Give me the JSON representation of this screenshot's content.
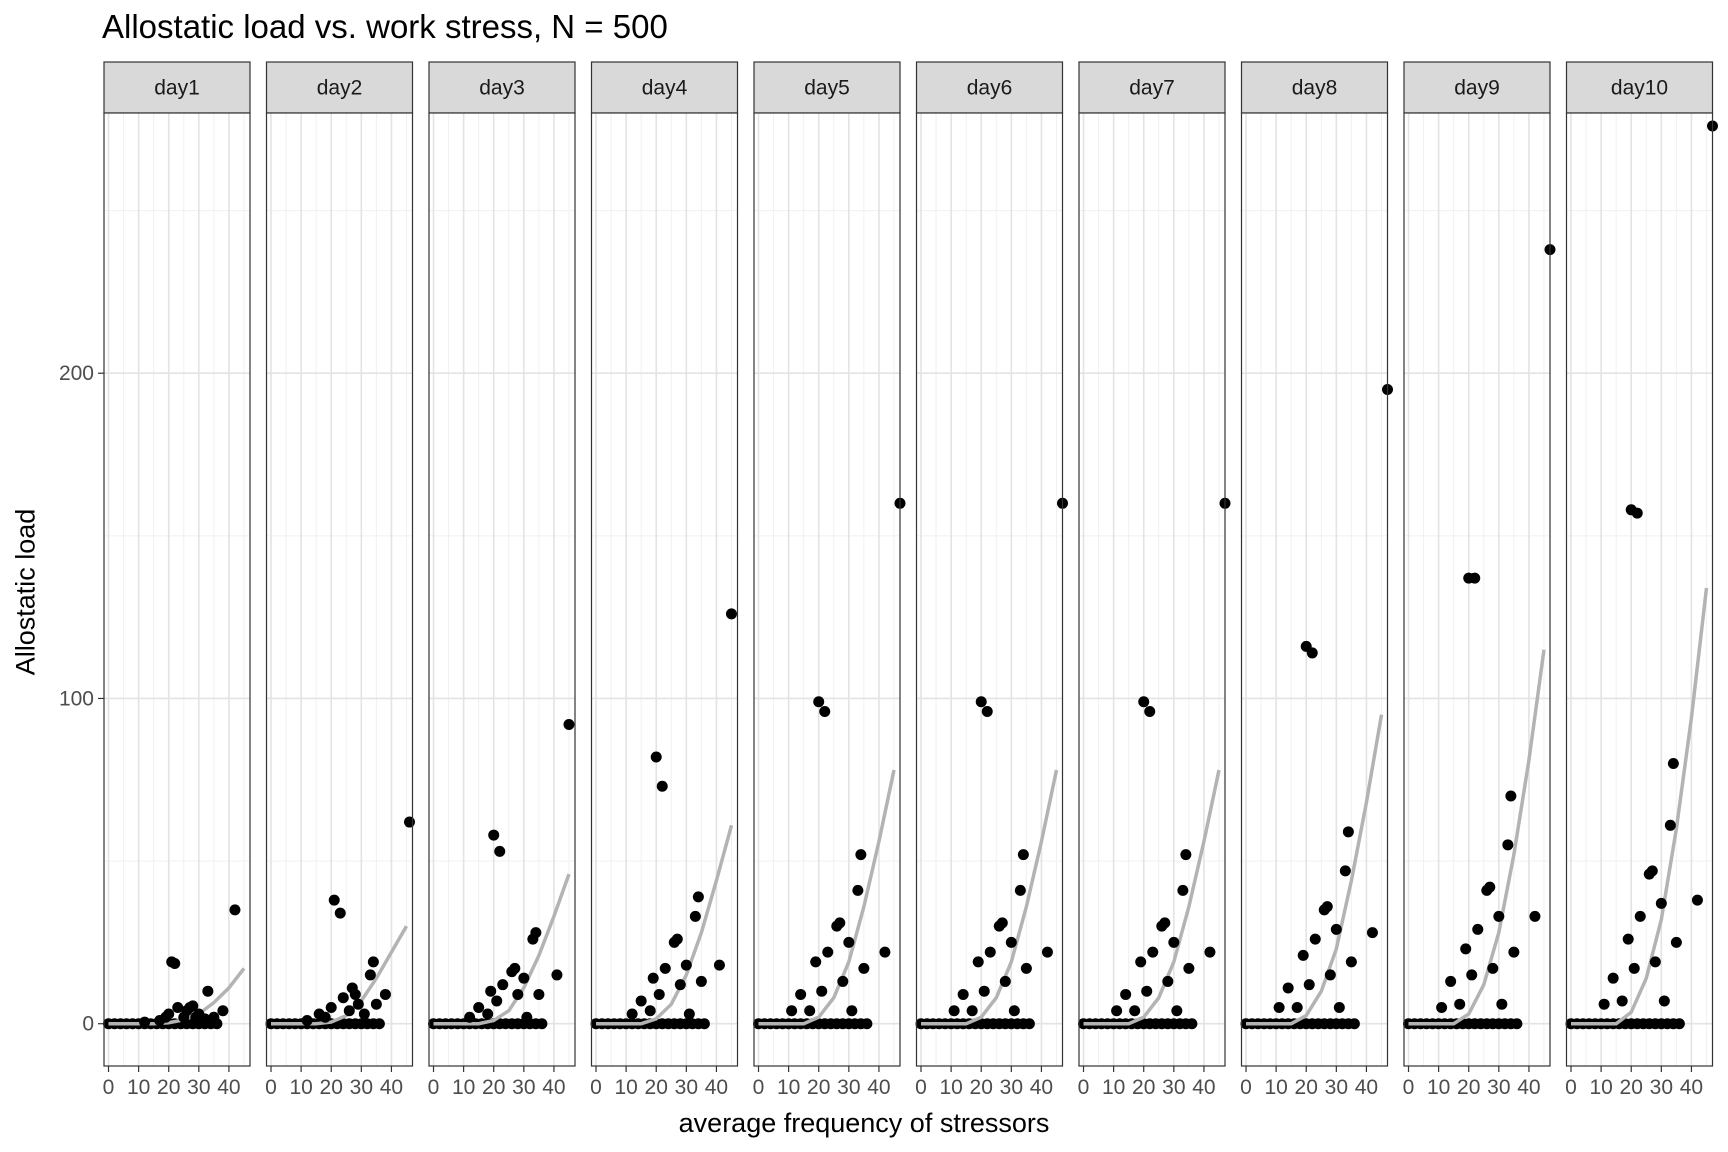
{
  "title": "Allostatic load vs. work stress, N = 500",
  "chart_data": {
    "type": "scatter",
    "title": "Allostatic load vs. work stress, N = 500",
    "xlabel": "average frequency of stressors",
    "ylabel": "Allostatic load",
    "xlim": [
      -1.5,
      47
    ],
    "ylim": [
      -13,
      280
    ],
    "xticks": [
      0,
      10,
      20,
      30,
      40
    ],
    "yticks": [
      0,
      100,
      200
    ],
    "grid": true,
    "facets": [
      {
        "label": "day1",
        "points": [
          [
            12,
            0.5
          ],
          [
            17,
            1
          ],
          [
            19,
            2
          ],
          [
            20,
            3
          ],
          [
            21,
            19
          ],
          [
            22,
            18.5
          ],
          [
            23,
            5
          ],
          [
            25,
            2
          ],
          [
            26,
            4
          ],
          [
            27,
            5
          ],
          [
            28,
            5.5
          ],
          [
            29,
            2
          ],
          [
            30,
            3
          ],
          [
            32,
            1.5
          ],
          [
            33,
            10
          ],
          [
            35,
            2
          ],
          [
            38,
            4
          ],
          [
            42,
            35
          ]
        ],
        "fit": [
          [
            0,
            0
          ],
          [
            15,
            0
          ],
          [
            20,
            0.3
          ],
          [
            25,
            1.2
          ],
          [
            30,
            3
          ],
          [
            35,
            6.5
          ],
          [
            40,
            11
          ],
          [
            45,
            17
          ]
        ]
      },
      {
        "label": "day2",
        "points": [
          [
            12,
            1
          ],
          [
            16,
            3
          ],
          [
            18,
            2
          ],
          [
            20,
            5
          ],
          [
            21,
            38
          ],
          [
            23,
            34
          ],
          [
            24,
            8
          ],
          [
            26,
            4
          ],
          [
            27,
            11
          ],
          [
            28,
            9
          ],
          [
            29,
            6
          ],
          [
            31,
            3
          ],
          [
            33,
            15
          ],
          [
            34,
            19
          ],
          [
            35,
            6
          ],
          [
            38,
            9
          ],
          [
            46,
            62
          ]
        ],
        "fit": [
          [
            0,
            0
          ],
          [
            15,
            0
          ],
          [
            20,
            0.5
          ],
          [
            25,
            2.5
          ],
          [
            30,
            7
          ],
          [
            35,
            14
          ],
          [
            40,
            22
          ],
          [
            45,
            30
          ]
        ]
      },
      {
        "label": "day3",
        "points": [
          [
            12,
            2
          ],
          [
            15,
            5
          ],
          [
            18,
            3
          ],
          [
            19,
            10
          ],
          [
            20,
            58
          ],
          [
            21,
            7
          ],
          [
            22,
            53
          ],
          [
            23,
            12
          ],
          [
            26,
            16
          ],
          [
            27,
            17
          ],
          [
            28,
            9
          ],
          [
            30,
            14
          ],
          [
            31,
            2
          ],
          [
            33,
            26
          ],
          [
            34,
            28
          ],
          [
            35,
            9
          ],
          [
            41,
            15
          ],
          [
            45,
            92
          ]
        ],
        "fit": [
          [
            0,
            0
          ],
          [
            15,
            0
          ],
          [
            20,
            1
          ],
          [
            25,
            4
          ],
          [
            30,
            11
          ],
          [
            35,
            21
          ],
          [
            40,
            33
          ],
          [
            45,
            46
          ]
        ]
      },
      {
        "label": "day4",
        "points": [
          [
            12,
            3
          ],
          [
            15,
            7
          ],
          [
            18,
            4
          ],
          [
            19,
            14
          ],
          [
            20,
            82
          ],
          [
            21,
            9
          ],
          [
            22,
            73
          ],
          [
            23,
            17
          ],
          [
            26,
            25
          ],
          [
            27,
            26
          ],
          [
            28,
            12
          ],
          [
            30,
            18
          ],
          [
            31,
            3
          ],
          [
            33,
            33
          ],
          [
            34,
            39
          ],
          [
            35,
            13
          ],
          [
            41,
            18
          ],
          [
            45,
            126
          ]
        ],
        "fit": [
          [
            0,
            0
          ],
          [
            15,
            0
          ],
          [
            20,
            1.5
          ],
          [
            25,
            6
          ],
          [
            30,
            15
          ],
          [
            35,
            28
          ],
          [
            40,
            44
          ],
          [
            45,
            61
          ]
        ]
      },
      {
        "label": "day5",
        "points": [
          [
            11,
            4
          ],
          [
            14,
            9
          ],
          [
            17,
            4
          ],
          [
            19,
            19
          ],
          [
            20,
            99
          ],
          [
            21,
            10
          ],
          [
            22,
            96
          ],
          [
            23,
            22
          ],
          [
            26,
            30
          ],
          [
            27,
            31
          ],
          [
            28,
            13
          ],
          [
            30,
            25
          ],
          [
            31,
            4
          ],
          [
            33,
            41
          ],
          [
            34,
            52
          ],
          [
            35,
            17
          ],
          [
            42,
            22
          ],
          [
            47,
            160
          ]
        ],
        "fit": [
          [
            0,
            0
          ],
          [
            15,
            0
          ],
          [
            20,
            2
          ],
          [
            25,
            8
          ],
          [
            30,
            19
          ],
          [
            35,
            36
          ],
          [
            40,
            56
          ],
          [
            45,
            78
          ]
        ]
      },
      {
        "label": "day6",
        "points": [
          [
            11,
            4
          ],
          [
            14,
            9
          ],
          [
            17,
            4
          ],
          [
            19,
            19
          ],
          [
            20,
            99
          ],
          [
            21,
            10
          ],
          [
            22,
            96
          ],
          [
            23,
            22
          ],
          [
            26,
            30
          ],
          [
            27,
            31
          ],
          [
            28,
            13
          ],
          [
            30,
            25
          ],
          [
            31,
            4
          ],
          [
            33,
            41
          ],
          [
            34,
            52
          ],
          [
            35,
            17
          ],
          [
            42,
            22
          ],
          [
            47,
            160
          ]
        ],
        "fit": [
          [
            0,
            0
          ],
          [
            15,
            0
          ],
          [
            20,
            2
          ],
          [
            25,
            8
          ],
          [
            30,
            19
          ],
          [
            35,
            36
          ],
          [
            40,
            56
          ],
          [
            45,
            78
          ]
        ]
      },
      {
        "label": "day7",
        "points": [
          [
            11,
            4
          ],
          [
            14,
            9
          ],
          [
            17,
            4
          ],
          [
            19,
            19
          ],
          [
            20,
            99
          ],
          [
            21,
            10
          ],
          [
            22,
            96
          ],
          [
            23,
            22
          ],
          [
            26,
            30
          ],
          [
            27,
            31
          ],
          [
            28,
            13
          ],
          [
            30,
            25
          ],
          [
            31,
            4
          ],
          [
            33,
            41
          ],
          [
            34,
            52
          ],
          [
            35,
            17
          ],
          [
            42,
            22
          ],
          [
            47,
            160
          ]
        ],
        "fit": [
          [
            0,
            0
          ],
          [
            15,
            0
          ],
          [
            20,
            2
          ],
          [
            25,
            8
          ],
          [
            30,
            19
          ],
          [
            35,
            36
          ],
          [
            40,
            56
          ],
          [
            45,
            78
          ]
        ]
      },
      {
        "label": "day8",
        "points": [
          [
            11,
            5
          ],
          [
            14,
            11
          ],
          [
            17,
            5
          ],
          [
            19,
            21
          ],
          [
            20,
            116
          ],
          [
            21,
            12
          ],
          [
            22,
            114
          ],
          [
            23,
            26
          ],
          [
            26,
            35
          ],
          [
            27,
            36
          ],
          [
            28,
            15
          ],
          [
            30,
            29
          ],
          [
            31,
            5
          ],
          [
            33,
            47
          ],
          [
            34,
            59
          ],
          [
            35,
            19
          ],
          [
            42,
            28
          ],
          [
            47,
            195
          ]
        ],
        "fit": [
          [
            0,
            0
          ],
          [
            15,
            0
          ],
          [
            20,
            2.5
          ],
          [
            25,
            10
          ],
          [
            30,
            23
          ],
          [
            35,
            44
          ],
          [
            40,
            68
          ],
          [
            45,
            95
          ]
        ]
      },
      {
        "label": "day9",
        "points": [
          [
            11,
            5
          ],
          [
            14,
            13
          ],
          [
            17,
            6
          ],
          [
            19,
            23
          ],
          [
            20,
            137
          ],
          [
            21,
            15
          ],
          [
            22,
            137
          ],
          [
            23,
            29
          ],
          [
            26,
            41
          ],
          [
            27,
            42
          ],
          [
            28,
            17
          ],
          [
            30,
            33
          ],
          [
            31,
            6
          ],
          [
            33,
            55
          ],
          [
            34,
            70
          ],
          [
            35,
            22
          ],
          [
            42,
            33
          ],
          [
            47,
            238
          ]
        ],
        "fit": [
          [
            0,
            0
          ],
          [
            15,
            0
          ],
          [
            20,
            3
          ],
          [
            25,
            12
          ],
          [
            30,
            28
          ],
          [
            35,
            52
          ],
          [
            40,
            81
          ],
          [
            45,
            115
          ]
        ]
      },
      {
        "label": "day10",
        "points": [
          [
            11,
            6
          ],
          [
            14,
            14
          ],
          [
            17,
            7
          ],
          [
            19,
            26
          ],
          [
            20,
            158
          ],
          [
            21,
            17
          ],
          [
            22,
            157
          ],
          [
            23,
            33
          ],
          [
            26,
            46
          ],
          [
            27,
            47
          ],
          [
            28,
            19
          ],
          [
            30,
            37
          ],
          [
            31,
            7
          ],
          [
            33,
            61
          ],
          [
            34,
            80
          ],
          [
            35,
            25
          ],
          [
            42,
            38
          ],
          [
            47,
            276
          ]
        ],
        "fit": [
          [
            0,
            0
          ],
          [
            15,
            0
          ],
          [
            20,
            3.5
          ],
          [
            25,
            14
          ],
          [
            30,
            32
          ],
          [
            35,
            60
          ],
          [
            40,
            94
          ],
          [
            45,
            134
          ]
        ]
      }
    ]
  }
}
